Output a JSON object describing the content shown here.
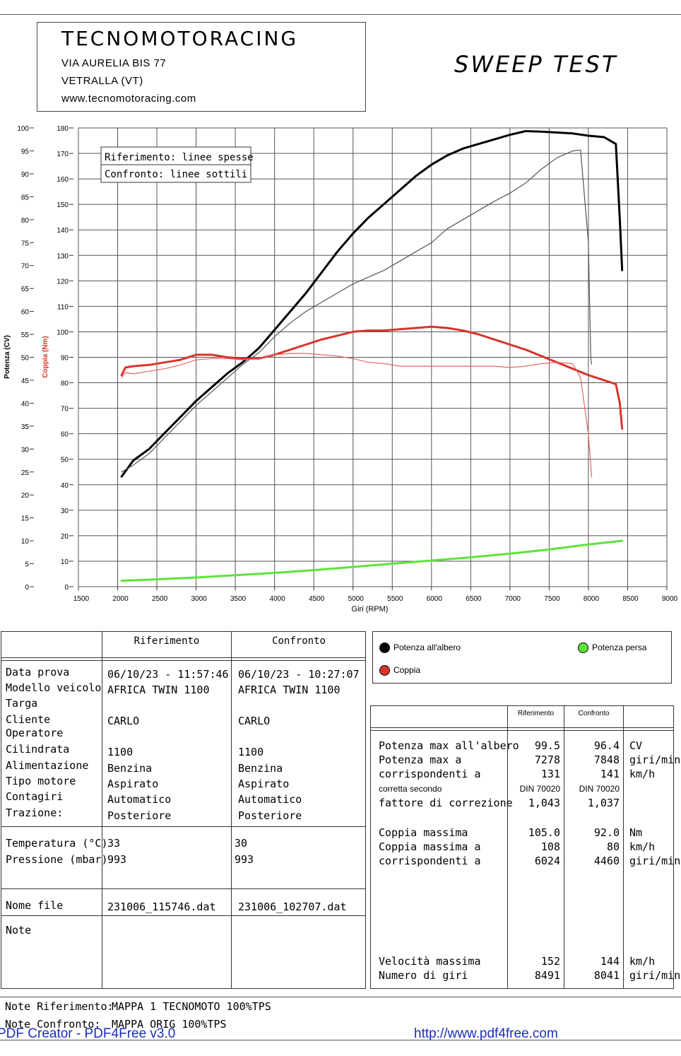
{
  "header": {
    "company": "TECNOMOTORACING",
    "address": "VIA AURELIA BIS 77",
    "city": "VETRALLA (VT)",
    "website": "www.tecnomotoracing.com",
    "test_title": "SWEEP TEST"
  },
  "chart_data": {
    "type": "line",
    "xlabel": "Giri (RPM)",
    "ylabel_left": "Potenza (CV)",
    "ylabel_right": "Coppia (Nm)",
    "xlim": [
      1500,
      9000
    ],
    "x_ticks": [
      "1500",
      "2000",
      "2500",
      "3000",
      "3500",
      "4000",
      "4500",
      "5000",
      "5500",
      "6000",
      "6500",
      "7000",
      "7500",
      "8000",
      "8500",
      "9000"
    ],
    "ylim_power": [
      0,
      100
    ],
    "power_ticks": [
      "0",
      "5",
      "10",
      "15",
      "20",
      "25",
      "30",
      "35",
      "40",
      "45",
      "50",
      "55",
      "60",
      "65",
      "70",
      "75",
      "80",
      "85",
      "90",
      "95",
      "100"
    ],
    "ylim_torque": [
      0,
      180
    ],
    "torque_ticks": [
      "0",
      "10",
      "20",
      "30",
      "40",
      "50",
      "60",
      "70",
      "80",
      "90",
      "100",
      "110",
      "120",
      "130",
      "140",
      "150",
      "160",
      "170",
      "180"
    ],
    "legend_overlay": [
      "Riferimento: linee spesse",
      "Confronto: linee sottili"
    ],
    "grid": true,
    "series": [
      {
        "role": "Potenza all'albero - Riferimento",
        "axis": "power",
        "color": "#000000",
        "width": 3,
        "x": [
          2050,
          2200,
          2400,
          2600,
          2800,
          3000,
          3200,
          3400,
          3600,
          3800,
          4000,
          4200,
          4400,
          4600,
          4800,
          5000,
          5200,
          5400,
          5600,
          5800,
          6000,
          6200,
          6400,
          6600,
          6800,
          7000,
          7200,
          7400,
          7600,
          7800,
          8000,
          8200,
          8350,
          8400,
          8430
        ],
        "y": [
          24,
          27.5,
          30,
          33.5,
          37,
          40.5,
          43.5,
          46.5,
          49,
          52,
          56,
          60,
          64,
          68.5,
          73,
          77,
          80.5,
          83.5,
          86.5,
          89.5,
          92,
          94,
          95.5,
          96.5,
          97.5,
          98.5,
          99.3,
          99.2,
          99,
          98.8,
          98.3,
          98,
          96.5,
          80,
          69
        ]
      },
      {
        "role": "Potenza all'albero - Confronto",
        "axis": "power",
        "color": "#555555",
        "width": 1.2,
        "x": [
          2050,
          2200,
          2400,
          2600,
          2800,
          3000,
          3200,
          3400,
          3600,
          3800,
          4000,
          4200,
          4400,
          4600,
          4800,
          5000,
          5200,
          5400,
          5600,
          5800,
          6000,
          6200,
          6400,
          6600,
          6800,
          7000,
          7200,
          7400,
          7600,
          7800,
          7900,
          8000,
          8030,
          8041
        ],
        "y": [
          25,
          26.5,
          29,
          32.5,
          36,
          39.5,
          42.5,
          45.5,
          48.5,
          51,
          54.5,
          57.5,
          60,
          62,
          64,
          66,
          67.5,
          69,
          71,
          73,
          75,
          78,
          80,
          82,
          84,
          85.8,
          88,
          91,
          93.5,
          95,
          95.2,
          75,
          50,
          48.5
        ]
      },
      {
        "role": "Coppia - Riferimento",
        "axis": "torque",
        "color": "#d8342c",
        "width": 3,
        "x": [
          2050,
          2100,
          2200,
          2400,
          2600,
          2800,
          3000,
          3200,
          3400,
          3600,
          3800,
          4000,
          4200,
          4400,
          4600,
          4800,
          5000,
          5200,
          5400,
          5600,
          5800,
          6000,
          6200,
          6400,
          6600,
          6800,
          7000,
          7200,
          7400,
          7600,
          7800,
          8000,
          8200,
          8350,
          8400,
          8430
        ],
        "y": [
          83,
          86,
          86.5,
          87,
          88,
          89,
          91,
          91,
          90,
          89.5,
          89.5,
          91,
          93,
          95,
          97,
          98.5,
          100,
          100.5,
          100.5,
          101,
          101.5,
          102,
          101.5,
          100.5,
          99,
          97,
          95,
          93,
          90.5,
          88,
          85.5,
          83,
          81,
          79.5,
          72,
          62
        ]
      },
      {
        "role": "Coppia - Confronto",
        "axis": "torque",
        "color": "#e8655e",
        "width": 1.2,
        "x": [
          2050,
          2100,
          2200,
          2400,
          2600,
          2800,
          3000,
          3200,
          3400,
          3600,
          3800,
          4000,
          4200,
          4400,
          4600,
          4800,
          5000,
          5200,
          5400,
          5600,
          5800,
          6000,
          6200,
          6400,
          6600,
          6800,
          7000,
          7200,
          7400,
          7600,
          7800,
          7900,
          8000,
          8041
        ],
        "y": [
          82,
          84,
          83.5,
          84.5,
          85.5,
          87,
          89,
          89.5,
          89.5,
          89,
          89.5,
          91,
          91.5,
          91.5,
          91,
          90.5,
          89.5,
          88,
          87.5,
          86.5,
          86.5,
          86.5,
          86.5,
          86.5,
          86.5,
          86.5,
          86,
          86.5,
          87.5,
          88,
          87.5,
          82,
          60,
          43
        ]
      },
      {
        "role": "Potenza persa",
        "axis": "power",
        "color": "#5ee33a",
        "width": 3,
        "x": [
          2050,
          2500,
          3000,
          3500,
          4000,
          4500,
          5000,
          5500,
          6000,
          6500,
          7000,
          7500,
          8000,
          8430
        ],
        "y": [
          1.3,
          1.6,
          2,
          2.5,
          3,
          3.6,
          4.3,
          5,
          5.7,
          6.4,
          7.2,
          8.1,
          9.2,
          10
        ]
      }
    ]
  },
  "legend": {
    "shaft_power": "Potenza all'albero",
    "lost_power": "Potenza persa",
    "torque": "Coppia",
    "colors": {
      "shaft_power": "#000000",
      "lost_power": "#5ee33a",
      "torque": "#d8342c"
    }
  },
  "info_table": {
    "col_ref": "Riferimento",
    "col_cmp": "Confronto",
    "rows": [
      {
        "label": "Data prova",
        "ref": "06/10/23 - 11:57:46",
        "cmp": "06/10/23 - 10:27:07"
      },
      {
        "label": "Modello veicolo",
        "ref": "AFRICA TWIN 1100",
        "cmp": "AFRICA TWIN 1100"
      },
      {
        "label": "Targa",
        "ref": "",
        "cmp": ""
      },
      {
        "label": "Cliente",
        "ref": "CARLO",
        "cmp": "CARLO"
      },
      {
        "label": "Operatore",
        "ref": "",
        "cmp": ""
      },
      {
        "label": "Cilindrata",
        "ref": "1100",
        "cmp": "1100"
      },
      {
        "label": "Alimentazione",
        "ref": "Benzina",
        "cmp": "Benzina"
      },
      {
        "label": "Tipo motore",
        "ref": "Aspirato",
        "cmp": "Aspirato"
      },
      {
        "label": "Contagiri",
        "ref": "Automatico",
        "cmp": "Automatico"
      },
      {
        "label": "Trazione:",
        "ref": "Posteriore",
        "cmp": "Posteriore"
      }
    ],
    "temperature": {
      "label": "Temperatura (°C)",
      "ref": "33",
      "cmp": "30"
    },
    "pressure": {
      "label": "Pressione (mbar)",
      "ref": "993",
      "cmp": "993"
    },
    "filename": {
      "label": "Nome file",
      "ref": "231006_115746.dat",
      "cmp": "231006_102707.dat"
    },
    "note_label": "Note"
  },
  "results": {
    "col_ref": "Riferimento",
    "col_cmp": "Confronto",
    "power_max": {
      "label": "Potenza max all'albero",
      "ref": "99.5",
      "cmp": "96.4",
      "unit": "CV"
    },
    "power_max_rpm": {
      "label": "Potenza max a",
      "ref": "7278",
      "cmp": "7848",
      "unit": "giri/min"
    },
    "power_max_speed": {
      "label": "corrispondenti a",
      "ref": "131",
      "cmp": "141",
      "unit": "km/h"
    },
    "correction_std": {
      "label": "corretta secondo",
      "ref": "DIN 70020",
      "cmp": "DIN 70020"
    },
    "correction_factor": {
      "label": "fattore di correzione",
      "ref": "1,043",
      "cmp": "1,037"
    },
    "torque_max": {
      "label": "Coppia massima",
      "ref": "105.0",
      "cmp": "92.0",
      "unit": "Nm"
    },
    "torque_max_speed": {
      "label": "Coppia massima a",
      "ref": "108",
      "cmp": "80",
      "unit": "km/h"
    },
    "torque_max_rpm": {
      "label": "corrispondenti a",
      "ref": "6024",
      "cmp": "4460",
      "unit": "giri/min"
    },
    "max_speed": {
      "label": "Velocità massima",
      "ref": "152",
      "cmp": "144",
      "unit": "km/h"
    },
    "max_rpm": {
      "label": "Numero di giri",
      "ref": "8491",
      "cmp": "8041",
      "unit": "giri/min"
    }
  },
  "notes": {
    "ref_label": "Note Riferimento:",
    "ref_value": "MAPPA 1 TECNOMOTO 100%TPS",
    "cmp_label": "Note Confronto:",
    "cmp_value": "MAPPA ORIG 100%TPS"
  },
  "watermark": {
    "left": "PDF Creator - PDF4Free v3.0",
    "right": "http://www.pdf4free.com"
  }
}
